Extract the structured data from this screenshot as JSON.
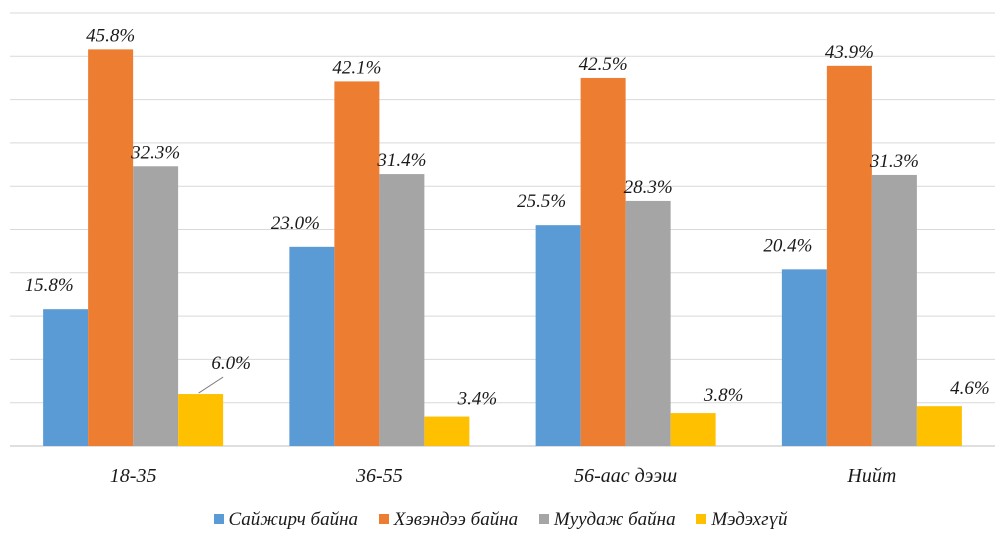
{
  "chart_data": {
    "type": "bar",
    "categories": [
      "18-35",
      "36-55",
      "56-аас дээш",
      "Нийт"
    ],
    "series": [
      {
        "name": "Сайжирч байна",
        "values": [
          15.8,
          23.0,
          25.5,
          20.4
        ],
        "labels": [
          "15.8%",
          "23.0%",
          "25.5%",
          "20.4%"
        ],
        "color": "#5B9BD5"
      },
      {
        "name": "Хэвэндээ байна",
        "values": [
          45.8,
          42.1,
          42.5,
          43.9
        ],
        "labels": [
          "45.8%",
          "42.1%",
          "42.5%",
          "43.9%"
        ],
        "color": "#ED7D31"
      },
      {
        "name": "Муудаж байна",
        "values": [
          32.3,
          31.4,
          28.3,
          31.3
        ],
        "labels": [
          "32.3%",
          "31.4%",
          "28.3%",
          "31.3%"
        ],
        "color": "#A5A5A5"
      },
      {
        "name": "Мэдэхгүй",
        "values": [
          6.0,
          3.4,
          3.8,
          4.6
        ],
        "labels": [
          "6.0%",
          "3.4%",
          "3.8%",
          "4.6%"
        ],
        "color": "#FFC000"
      }
    ],
    "ylim": [
      0,
      50
    ],
    "grid": true,
    "legend_position": "bottom"
  }
}
